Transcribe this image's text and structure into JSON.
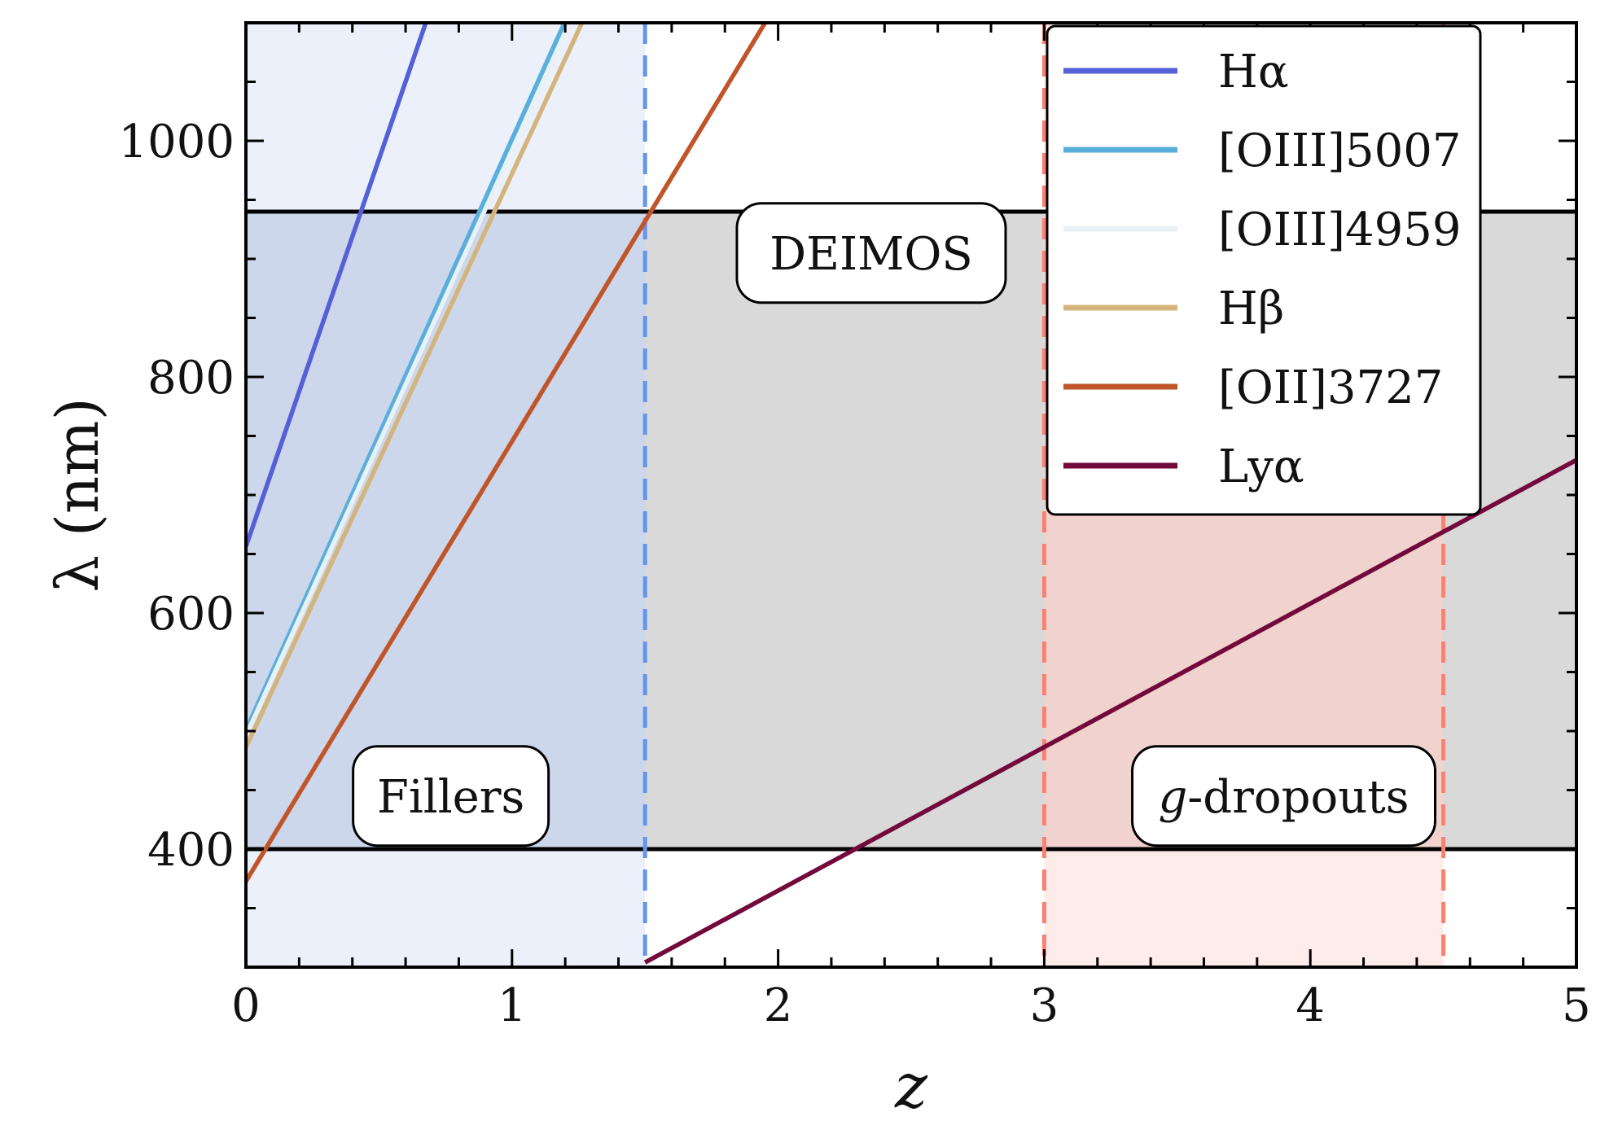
{
  "chart_data": {
    "type": "line",
    "xlabel": "z",
    "ylabel": "λ (nm)",
    "xlim": [
      0,
      5
    ],
    "ylim": [
      300,
      1100
    ],
    "x_ticks": [
      0,
      1,
      2,
      3,
      4,
      5
    ],
    "x_tick_labels": [
      "0",
      "1",
      "2",
      "3",
      "4",
      "5"
    ],
    "y_ticks": [
      400,
      600,
      800,
      1000
    ],
    "y_tick_labels": [
      "400",
      "600",
      "800",
      "1000"
    ],
    "grid": false,
    "legend_position": "top-right",
    "series": [
      {
        "name": "Hα",
        "rest_wavelength_nm": 656.3,
        "color": "#5560d6",
        "x": [
          0,
          0.676
        ],
        "y": [
          656.3,
          1100
        ],
        "z_range": [
          0,
          5
        ]
      },
      {
        "name": "[OIII]5007",
        "rest_wavelength_nm": 500.7,
        "color": "#5aaedc",
        "x": [
          0,
          1.197
        ],
        "y": [
          500.7,
          1100
        ]
      },
      {
        "name": "[OIII]4959",
        "rest_wavelength_nm": 495.9,
        "color": "#e8f2f4",
        "x": [
          0,
          1.218
        ],
        "y": [
          495.9,
          1100
        ]
      },
      {
        "name": "Hβ",
        "rest_wavelength_nm": 486.1,
        "color": "#d4b47c",
        "x": [
          0,
          1.263
        ],
        "y": [
          486.1,
          1100
        ]
      },
      {
        "name": "[OII]3727",
        "rest_wavelength_nm": 372.7,
        "color": "#c0552a",
        "x": [
          0,
          1.951
        ],
        "y": [
          372.7,
          1100
        ]
      },
      {
        "name": "Lyα",
        "rest_wavelength_nm": 121.6,
        "color": "#72093a",
        "x": [
          1.5,
          5
        ],
        "y": [
          304,
          729.6
        ]
      }
    ],
    "shaded_regions": [
      {
        "label": "DEIMOS",
        "kind": "horizontal-band",
        "y": [
          400,
          940
        ],
        "color": "#d9d9d9"
      },
      {
        "label": "Fillers",
        "kind": "vertical-band",
        "x": [
          0,
          1.5
        ],
        "color": "#dde6f8",
        "boundary_color": "#6495ed"
      },
      {
        "label": "g-dropouts",
        "kind": "vertical-band",
        "x": [
          3,
          4.5
        ],
        "color": "#fde0dc",
        "boundary_color": "#fa8072"
      }
    ],
    "horizontal_lines": [
      400,
      940
    ],
    "vertical_dashed_lines": [
      {
        "x": 1.5,
        "color": "#6495ed"
      },
      {
        "x": 3,
        "color": "#fa8072"
      },
      {
        "x": 4.5,
        "color": "#fa8072"
      }
    ],
    "annotations": [
      {
        "text": "DEIMOS",
        "x": 2.35,
        "y": 905
      },
      {
        "text": "Fillers",
        "x": 0.77,
        "y": 445
      },
      {
        "text_italic": "g",
        "text": "-dropouts",
        "x": 3.9,
        "y": 445
      }
    ]
  }
}
